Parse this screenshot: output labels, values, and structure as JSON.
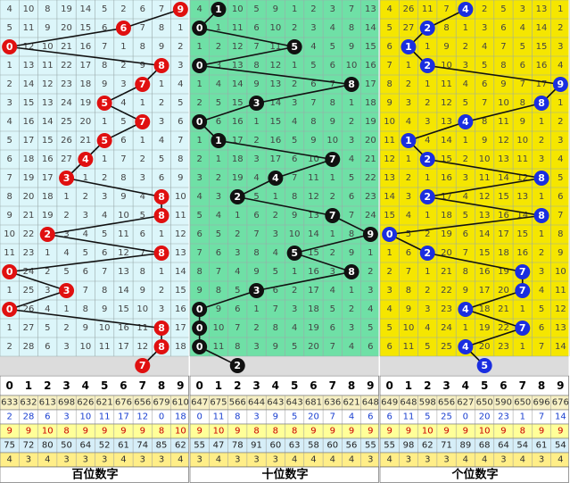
{
  "columns": [
    0,
    1,
    2,
    3,
    4,
    5,
    6,
    7,
    8,
    9
  ],
  "panels": [
    {
      "label": "百位数字",
      "draws": [
        9,
        6,
        0,
        8,
        7,
        5,
        7,
        5,
        4,
        3,
        8,
        8,
        2,
        8,
        0,
        3,
        0,
        8,
        8
      ],
      "prediction": 7,
      "rows": [
        [
          4,
          10,
          8,
          19,
          14,
          5,
          2,
          6,
          7,
          null
        ],
        [
          5,
          11,
          9,
          20,
          15,
          6,
          null,
          7,
          8,
          1
        ],
        [
          null,
          12,
          10,
          21,
          16,
          7,
          1,
          8,
          9,
          2
        ],
        [
          1,
          13,
          11,
          22,
          17,
          8,
          2,
          9,
          null,
          3
        ],
        [
          2,
          14,
          12,
          23,
          18,
          9,
          3,
          null,
          1,
          4
        ],
        [
          3,
          15,
          13,
          24,
          19,
          null,
          4,
          1,
          2,
          5
        ],
        [
          4,
          16,
          14,
          25,
          20,
          1,
          5,
          null,
          3,
          6
        ],
        [
          5,
          17,
          15,
          26,
          21,
          null,
          6,
          1,
          4,
          7
        ],
        [
          6,
          18,
          16,
          27,
          null,
          1,
          7,
          2,
          5,
          8
        ],
        [
          7,
          19,
          17,
          null,
          1,
          2,
          8,
          3,
          6,
          9
        ],
        [
          8,
          20,
          18,
          1,
          2,
          3,
          9,
          4,
          null,
          10
        ],
        [
          9,
          21,
          19,
          2,
          3,
          4,
          10,
          5,
          null,
          11
        ],
        [
          10,
          22,
          null,
          3,
          4,
          5,
          11,
          6,
          1,
          12
        ],
        [
          11,
          23,
          1,
          4,
          5,
          6,
          12,
          7,
          null,
          13
        ],
        [
          null,
          24,
          2,
          5,
          6,
          7,
          13,
          8,
          1,
          14
        ],
        [
          1,
          25,
          3,
          null,
          7,
          8,
          14,
          9,
          2,
          15
        ],
        [
          null,
          26,
          4,
          1,
          8,
          9,
          15,
          10,
          3,
          16
        ],
        [
          1,
          27,
          5,
          2,
          9,
          10,
          16,
          11,
          null,
          17
        ],
        [
          2,
          28,
          6,
          3,
          10,
          11,
          17,
          12,
          null,
          18
        ]
      ],
      "stats": [
        [
          633,
          632,
          613,
          698,
          626,
          621,
          676,
          656,
          679,
          610
        ],
        [
          2,
          28,
          6,
          3,
          10,
          11,
          17,
          12,
          0,
          18
        ],
        [
          9,
          9,
          10,
          8,
          9,
          9,
          9,
          9,
          8,
          10
        ],
        [
          75,
          72,
          80,
          50,
          64,
          52,
          61,
          74,
          85,
          62
        ],
        [
          4,
          3,
          4,
          3,
          3,
          3,
          4,
          3,
          3,
          4
        ]
      ]
    },
    {
      "label": "十位数字",
      "draws": [
        1,
        0,
        5,
        0,
        8,
        3,
        0,
        1,
        7,
        4,
        2,
        7,
        9,
        5,
        8,
        3,
        0,
        0,
        0
      ],
      "prediction": 2,
      "rows": [
        [
          4,
          null,
          10,
          5,
          9,
          1,
          2,
          3,
          7,
          13
        ],
        [
          null,
          1,
          11,
          6,
          10,
          2,
          3,
          4,
          8,
          14
        ],
        [
          1,
          2,
          12,
          7,
          11,
          null,
          4,
          5,
          9,
          15
        ],
        [
          null,
          3,
          13,
          8,
          12,
          1,
          5,
          6,
          10,
          16
        ],
        [
          1,
          4,
          14,
          9,
          13,
          2,
          6,
          7,
          null,
          17
        ],
        [
          2,
          5,
          15,
          null,
          14,
          3,
          7,
          8,
          1,
          18
        ],
        [
          null,
          6,
          16,
          1,
          15,
          4,
          8,
          9,
          2,
          19
        ],
        [
          1,
          null,
          17,
          2,
          16,
          5,
          9,
          10,
          3,
          20
        ],
        [
          2,
          1,
          18,
          3,
          17,
          6,
          10,
          null,
          4,
          21
        ],
        [
          3,
          2,
          19,
          4,
          null,
          7,
          11,
          1,
          5,
          22
        ],
        [
          4,
          3,
          null,
          5,
          1,
          8,
          12,
          2,
          6,
          23
        ],
        [
          5,
          4,
          1,
          6,
          2,
          9,
          13,
          null,
          7,
          24
        ],
        [
          6,
          5,
          2,
          7,
          3,
          10,
          14,
          1,
          8,
          null
        ],
        [
          7,
          6,
          3,
          8,
          4,
          null,
          15,
          2,
          9,
          1
        ],
        [
          8,
          7,
          4,
          9,
          5,
          1,
          16,
          3,
          null,
          2
        ],
        [
          9,
          8,
          5,
          null,
          6,
          2,
          17,
          4,
          1,
          3
        ],
        [
          null,
          9,
          6,
          1,
          7,
          3,
          18,
          5,
          2,
          4
        ],
        [
          null,
          10,
          7,
          2,
          8,
          4,
          19,
          6,
          3,
          5
        ],
        [
          null,
          11,
          8,
          3,
          9,
          5,
          20,
          7,
          4,
          6
        ]
      ],
      "stats": [
        [
          647,
          675,
          566,
          644,
          643,
          643,
          681,
          636,
          621,
          648
        ],
        [
          0,
          11,
          8,
          3,
          9,
          5,
          20,
          7,
          4,
          6
        ],
        [
          9,
          10,
          9,
          8,
          8,
          8,
          9,
          9,
          9,
          9
        ],
        [
          55,
          47,
          78,
          91,
          60,
          63,
          58,
          60,
          56,
          55
        ],
        [
          3,
          4,
          3,
          3,
          3,
          4,
          4,
          4,
          4,
          3
        ]
      ]
    },
    {
      "label": "个位数字",
      "draws": [
        4,
        2,
        1,
        2,
        9,
        8,
        4,
        1,
        2,
        8,
        2,
        8,
        0,
        2,
        7,
        7,
        4,
        7,
        4
      ],
      "prediction": 5,
      "rows": [
        [
          4,
          26,
          11,
          7,
          null,
          2,
          5,
          3,
          13,
          1
        ],
        [
          5,
          27,
          null,
          8,
          1,
          3,
          6,
          4,
          14,
          2
        ],
        [
          6,
          null,
          1,
          9,
          2,
          4,
          7,
          5,
          15,
          3
        ],
        [
          7,
          1,
          null,
          10,
          3,
          5,
          8,
          6,
          16,
          4
        ],
        [
          8,
          2,
          1,
          11,
          4,
          6,
          9,
          7,
          17,
          null
        ],
        [
          9,
          3,
          2,
          12,
          5,
          7,
          10,
          8,
          null,
          1
        ],
        [
          10,
          4,
          3,
          13,
          null,
          8,
          11,
          9,
          1,
          2
        ],
        [
          11,
          null,
          4,
          14,
          1,
          9,
          12,
          10,
          2,
          3
        ],
        [
          12,
          1,
          null,
          15,
          2,
          10,
          13,
          11,
          3,
          4
        ],
        [
          13,
          2,
          1,
          16,
          3,
          11,
          14,
          12,
          null,
          5
        ],
        [
          14,
          3,
          null,
          17,
          4,
          12,
          15,
          13,
          1,
          6
        ],
        [
          15,
          4,
          1,
          18,
          5,
          13,
          16,
          14,
          null,
          7
        ],
        [
          null,
          5,
          2,
          19,
          6,
          14,
          17,
          15,
          1,
          8
        ],
        [
          1,
          6,
          null,
          20,
          7,
          15,
          18,
          16,
          2,
          9
        ],
        [
          2,
          7,
          1,
          21,
          8,
          16,
          19,
          null,
          3,
          10
        ],
        [
          3,
          8,
          2,
          22,
          9,
          17,
          20,
          null,
          4,
          11
        ],
        [
          4,
          9,
          3,
          23,
          null,
          18,
          21,
          1,
          5,
          12
        ],
        [
          5,
          10,
          4,
          24,
          1,
          19,
          22,
          null,
          6,
          13
        ],
        [
          6,
          11,
          5,
          25,
          null,
          20,
          23,
          1,
          7,
          14
        ]
      ],
      "stats": [
        [
          649,
          648,
          598,
          656,
          627,
          650,
          590,
          650,
          696,
          676
        ],
        [
          6,
          11,
          5,
          25,
          0,
          20,
          23,
          1,
          7,
          14
        ],
        [
          9,
          9,
          10,
          9,
          9,
          10,
          9,
          8,
          9,
          9
        ],
        [
          55,
          98,
          62,
          71,
          89,
          68,
          64,
          54,
          61,
          54
        ],
        [
          4,
          3,
          3,
          3,
          4,
          4,
          3,
          4,
          3,
          4
        ]
      ]
    }
  ]
}
